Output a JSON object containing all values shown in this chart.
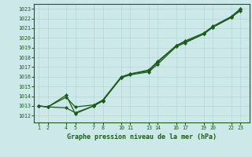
{
  "title": "Graphe pression niveau de la mer (hPa)",
  "bg_color": "#cce8e8",
  "grid_color": "#aacccc",
  "line_color": "#1a5c1a",
  "marker_color": "#1a5c1a",
  "xtick_positions": [
    1,
    2,
    4,
    5,
    7,
    8,
    10,
    11,
    13,
    14,
    16,
    17,
    19,
    20,
    22,
    23
  ],
  "xtick_labels": [
    "1",
    "2",
    "4",
    "5",
    "7",
    "8",
    "10",
    "11",
    "13",
    "14",
    "16",
    "17",
    "19",
    "20",
    "22",
    "23"
  ],
  "ytick_positions": [
    1012,
    1013,
    1014,
    1015,
    1016,
    1017,
    1018,
    1019,
    1020,
    1021,
    1022,
    1023
  ],
  "xlim": [
    0.5,
    24.0
  ],
  "ylim": [
    1011.3,
    1023.5
  ],
  "line1_x": [
    1,
    2,
    4,
    5,
    7,
    8,
    10,
    11,
    13,
    14,
    16,
    17,
    19,
    20,
    22,
    23
  ],
  "line1_y": [
    1013.0,
    1012.9,
    1012.8,
    1012.3,
    1013.0,
    1013.5,
    1015.9,
    1016.2,
    1016.5,
    1017.3,
    1019.1,
    1019.5,
    1020.4,
    1021.1,
    1022.1,
    1022.8
  ],
  "line2_x": [
    1,
    2,
    4,
    5,
    7,
    8,
    10,
    11,
    13,
    14,
    16,
    17,
    19,
    20,
    22,
    23
  ],
  "line2_y": [
    1013.0,
    1012.9,
    1013.9,
    1012.9,
    1013.1,
    1013.6,
    1016.0,
    1016.3,
    1016.6,
    1017.5,
    1019.2,
    1019.6,
    1020.4,
    1021.1,
    1022.1,
    1022.9
  ],
  "line3_x": [
    1,
    2,
    4,
    5,
    7,
    8,
    10,
    11,
    13,
    14,
    16,
    17,
    19,
    20,
    22,
    23
  ],
  "line3_y": [
    1013.0,
    1012.9,
    1014.1,
    1012.2,
    1013.0,
    1013.6,
    1015.9,
    1016.3,
    1016.7,
    1017.6,
    1019.2,
    1019.7,
    1020.5,
    1021.2,
    1022.2,
    1023.0
  ]
}
